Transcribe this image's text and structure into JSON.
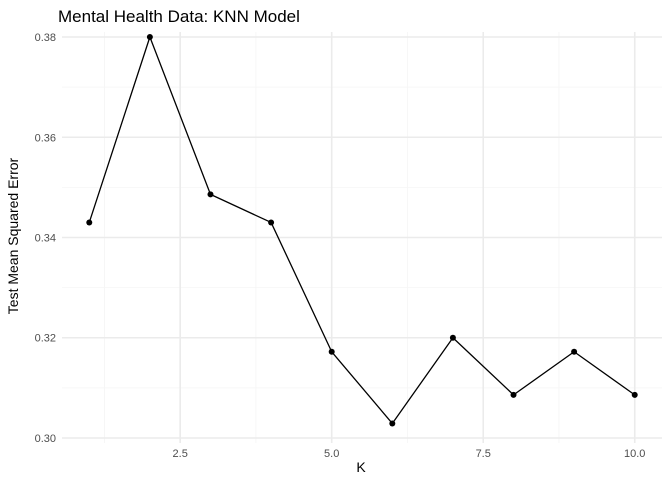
{
  "chart_data": {
    "type": "line",
    "title": "Mental Health Data: KNN Model",
    "xlabel": "K",
    "ylabel": "Test Mean Squared Error",
    "xlim": [
      0.55,
      10.45
    ],
    "ylim": [
      0.299,
      0.381
    ],
    "x_ticks": [
      2.5,
      5.0,
      7.5,
      10.0
    ],
    "x_tick_labels": [
      "2.5",
      "5.0",
      "7.5",
      "10.0"
    ],
    "y_ticks": [
      0.3,
      0.32,
      0.34,
      0.36,
      0.38
    ],
    "y_tick_labels": [
      "0.30",
      "0.32",
      "0.34",
      "0.36",
      "0.38"
    ],
    "grid": true,
    "legend": "none",
    "x": [
      1,
      2,
      3,
      4,
      5,
      6,
      7,
      8,
      9,
      10
    ],
    "y": [
      0.343,
      0.38,
      0.3486,
      0.343,
      0.3172,
      0.3029,
      0.32,
      0.3086,
      0.3172,
      0.3086
    ],
    "colors": {
      "line": "#000000",
      "point": "#000000",
      "grid_major": "#ebebeb",
      "grid_minor": "#f5f5f5"
    }
  }
}
